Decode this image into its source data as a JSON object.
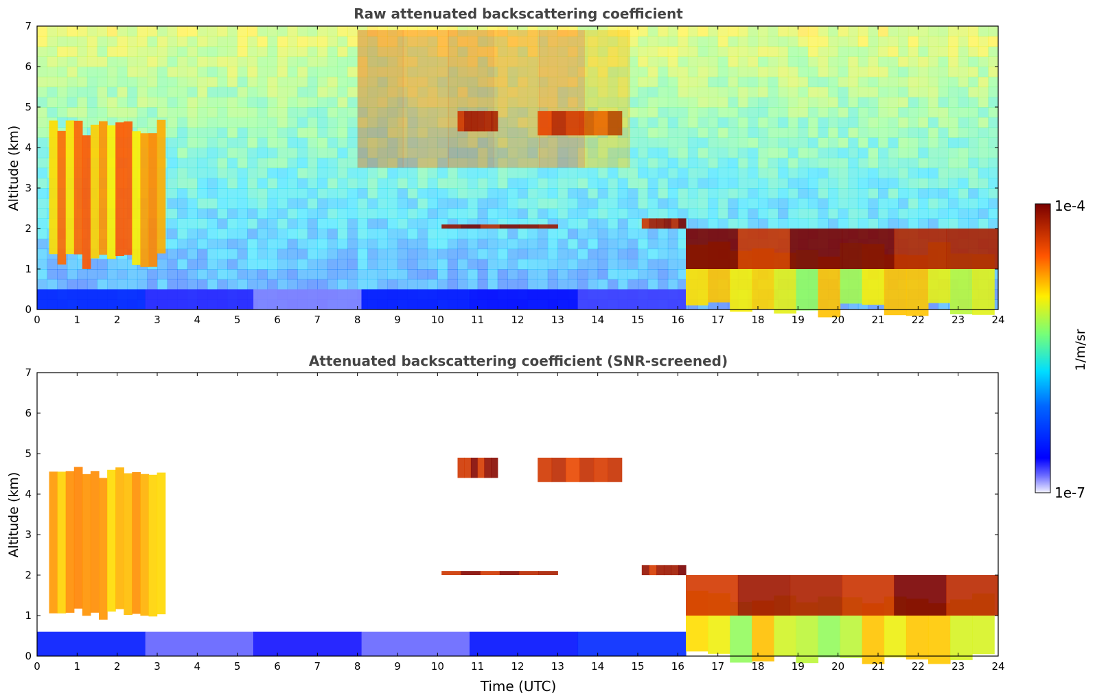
{
  "figure": {
    "colorbar": {
      "label": "1/m/sr",
      "min_label": "1e-7",
      "max_label": "1e-4",
      "scale": "log",
      "colormap": "jet"
    }
  },
  "chart_data": [
    {
      "type": "heatmap",
      "title": "Raw attenuated backscattering coefficient",
      "xlabel": "",
      "ylabel": "Altitude (km)",
      "x_ticks": [
        "0",
        "1",
        "2",
        "3",
        "4",
        "5",
        "6",
        "7",
        "8",
        "9",
        "10",
        "11",
        "12",
        "13",
        "14",
        "15",
        "16",
        "17",
        "18",
        "19",
        "20",
        "21",
        "22",
        "23",
        "24"
      ],
      "y_ticks": [
        "0",
        "1",
        "2",
        "3",
        "4",
        "5",
        "6",
        "7"
      ],
      "xlim": [
        0,
        24
      ],
      "ylim": [
        0,
        7
      ],
      "value_range": [
        1e-07,
        0.0001
      ],
      "grid": false,
      "features": [
        {
          "kind": "boundary-layer",
          "x": [
            0,
            16.2
          ],
          "y": [
            0,
            0.5
          ],
          "level": 0.12
        },
        {
          "kind": "cloud",
          "x": [
            0.3,
            3.2
          ],
          "y": [
            1.2,
            4.5
          ],
          "level": 0.75
        },
        {
          "kind": "cloud",
          "x": [
            16.2,
            23.9
          ],
          "y": [
            0,
            1.5
          ],
          "level": 0.65
        },
        {
          "kind": "cirrus",
          "x": [
            10.5,
            11.5
          ],
          "y": [
            4.4,
            4.9
          ],
          "level": 0.95
        },
        {
          "kind": "cirrus",
          "x": [
            12.5,
            14.6
          ],
          "y": [
            4.3,
            4.9
          ],
          "level": 0.9
        },
        {
          "kind": "cloud-layer",
          "x": [
            10.1,
            13.0
          ],
          "y": [
            2.0,
            2.1
          ],
          "level": 0.95
        },
        {
          "kind": "cloud-layer",
          "x": [
            15.1,
            16.2
          ],
          "y": [
            2.0,
            2.25
          ],
          "level": 0.95
        },
        {
          "kind": "cloud-layer",
          "x": [
            16.2,
            24
          ],
          "y": [
            1.0,
            2.0
          ],
          "level": 0.95
        },
        {
          "kind": "aerosol",
          "x": [
            8.0,
            14.8
          ],
          "y": [
            3.5,
            6.9
          ],
          "level": 0.8
        }
      ]
    },
    {
      "type": "heatmap",
      "title": "Attenuated backscattering coefficient (SNR-screened)",
      "xlabel": "Time (UTC)",
      "ylabel": "Altitude (km)",
      "x_ticks": [
        "0",
        "1",
        "2",
        "3",
        "4",
        "5",
        "6",
        "7",
        "8",
        "9",
        "10",
        "11",
        "12",
        "13",
        "14",
        "15",
        "16",
        "17",
        "18",
        "19",
        "20",
        "21",
        "22",
        "23",
        "24"
      ],
      "y_ticks": [
        "0",
        "1",
        "2",
        "3",
        "4",
        "5",
        "6",
        "7"
      ],
      "xlim": [
        0,
        24
      ],
      "ylim": [
        0,
        7
      ],
      "value_range": [
        1e-07,
        0.0001
      ],
      "grid": false,
      "features": [
        {
          "kind": "boundary-layer",
          "x": [
            0,
            16.2
          ],
          "y": [
            0,
            0.6
          ],
          "level": 0.12
        },
        {
          "kind": "cloud",
          "x": [
            0.3,
            3.2
          ],
          "y": [
            1.0,
            4.5
          ],
          "level": 0.75
        },
        {
          "kind": "cloud",
          "x": [
            16.2,
            23.9
          ],
          "y": [
            0,
            1.5
          ],
          "level": 0.65
        },
        {
          "kind": "cirrus",
          "x": [
            10.5,
            11.5
          ],
          "y": [
            4.4,
            4.9
          ],
          "level": 0.95
        },
        {
          "kind": "cirrus",
          "x": [
            12.5,
            14.6
          ],
          "y": [
            4.3,
            4.9
          ],
          "level": 0.9
        },
        {
          "kind": "cloud-layer",
          "x": [
            10.1,
            13.0
          ],
          "y": [
            2.0,
            2.1
          ],
          "level": 0.95
        },
        {
          "kind": "cloud-layer",
          "x": [
            15.1,
            16.2
          ],
          "y": [
            2.0,
            2.25
          ],
          "level": 0.95
        },
        {
          "kind": "cloud-layer",
          "x": [
            16.2,
            24
          ],
          "y": [
            1.0,
            2.0
          ],
          "level": 0.95
        }
      ]
    }
  ]
}
